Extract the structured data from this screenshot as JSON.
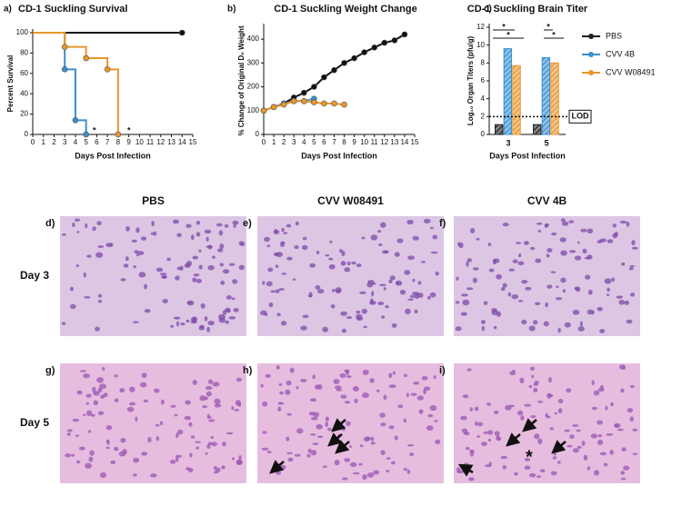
{
  "chart_data": [
    {
      "type": "line",
      "drawstyle": "steps-post",
      "panel": "a)",
      "title": "CD-1 Suckling Survival",
      "xlabel": "Days Post Infection",
      "ylabel": "Percent Survival",
      "xlim": [
        0,
        15
      ],
      "xticks": [
        0,
        1,
        2,
        3,
        4,
        5,
        6,
        7,
        8,
        9,
        10,
        11,
        12,
        13,
        14,
        15
      ],
      "ylim": [
        0,
        100
      ],
      "yticks": [
        0,
        20,
        40,
        60,
        80,
        100
      ],
      "annotations": [
        "*",
        "*"
      ],
      "series": [
        {
          "name": "PBS",
          "color": "#111111",
          "x": [
            0,
            14
          ],
          "values": [
            100,
            100
          ]
        },
        {
          "name": "CVV 4B",
          "color": "#3a8fd0",
          "x": [
            0,
            3,
            4,
            5
          ],
          "values": [
            100,
            64,
            14,
            0
          ]
        },
        {
          "name": "CVV W08491",
          "color": "#e8962e",
          "x": [
            0,
            3,
            5,
            7,
            8
          ],
          "values": [
            100,
            86,
            75,
            64,
            0
          ]
        }
      ]
    },
    {
      "type": "line",
      "panel": "b)",
      "title": "CD-1 Suckling Weight Change",
      "xlabel": "Days Post Infection",
      "ylabel": "% Change of Original D₀ Weight",
      "xlim": [
        0,
        15
      ],
      "xticks": [
        0,
        1,
        2,
        3,
        4,
        5,
        6,
        7,
        8,
        9,
        10,
        11,
        12,
        13,
        14,
        15
      ],
      "ylim": [
        0,
        450
      ],
      "yticks": [
        0,
        100,
        200,
        300,
        400
      ],
      "series": [
        {
          "name": "PBS",
          "color": "#111111",
          "x": [
            0,
            1,
            2,
            3,
            4,
            5,
            6,
            7,
            8,
            9,
            10,
            11,
            12,
            13,
            14
          ],
          "values": [
            100,
            115,
            130,
            155,
            175,
            200,
            240,
            270,
            300,
            320,
            345,
            365,
            385,
            395,
            420
          ]
        },
        {
          "name": "CVV 4B",
          "color": "#3a8fd0",
          "x": [
            0,
            1,
            2,
            3,
            4,
            5
          ],
          "values": [
            100,
            115,
            130,
            140,
            140,
            150
          ]
        },
        {
          "name": "CVV W08491",
          "color": "#e8962e",
          "x": [
            0,
            1,
            2,
            3,
            4,
            5,
            6,
            7,
            8
          ],
          "values": [
            100,
            115,
            125,
            140,
            140,
            135,
            130,
            130,
            125
          ]
        }
      ]
    },
    {
      "type": "bar",
      "panel": "c)",
      "title": "CD-1 Suckling Brain Titer",
      "xlabel": "Days Post Infection",
      "ylabel": "Log₁₀ Organ Titers (pfu/g)",
      "categories": [
        "3",
        "5"
      ],
      "ylim": [
        0,
        12
      ],
      "yticks": [
        0,
        2,
        4,
        6,
        8,
        10,
        12
      ],
      "lod": 2,
      "lod_label": "LOD",
      "annotations": [
        "*",
        "*",
        "*",
        "*"
      ],
      "series": [
        {
          "name": "PBS",
          "color": "#222222",
          "values": [
            1.1,
            1.1
          ]
        },
        {
          "name": "CVV 4B",
          "color": "#3a8fd0",
          "values": [
            9.6,
            8.6
          ]
        },
        {
          "name": "CVV W08491",
          "color": "#e8962e",
          "values": [
            7.7,
            8.0
          ]
        }
      ]
    }
  ],
  "histology": {
    "columns": [
      "PBS",
      "CVV W08491",
      "CVV 4B"
    ],
    "rows": [
      "Day 3",
      "Day 5"
    ],
    "panels": [
      [
        "d)",
        "e)",
        "f)"
      ],
      [
        "g)",
        "h)",
        "i)"
      ]
    ],
    "asterisk": "*"
  }
}
